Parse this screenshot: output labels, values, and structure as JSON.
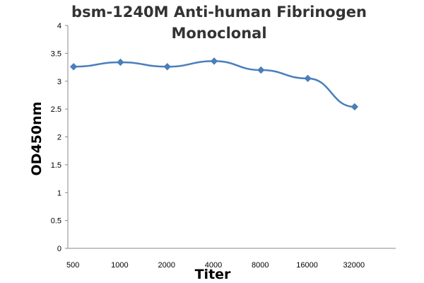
{
  "chart_data": {
    "type": "line",
    "title": "bsm-1240M Anti-human Fibrinogen Monoclonal",
    "title_lines": [
      "bsm-1240M Anti-human Fibrinogen",
      "Monoclonal"
    ],
    "xlabel": "Titer",
    "ylabel": "OD450nm",
    "categories": [
      "500",
      "1000",
      "2000",
      "4000",
      "8000",
      "16000",
      "32000"
    ],
    "yticks": [
      "0",
      "0.5",
      "1",
      "1.5",
      "2",
      "2.5",
      "3",
      "3.5",
      "4"
    ],
    "ylim": [
      0,
      4
    ],
    "grid": false,
    "legend": "none",
    "series": [
      {
        "values": [
          3.26,
          3.34,
          3.26,
          3.36,
          3.2,
          3.05,
          2.54
        ],
        "color": "#4a7ebb",
        "marker": "diamond"
      }
    ]
  }
}
